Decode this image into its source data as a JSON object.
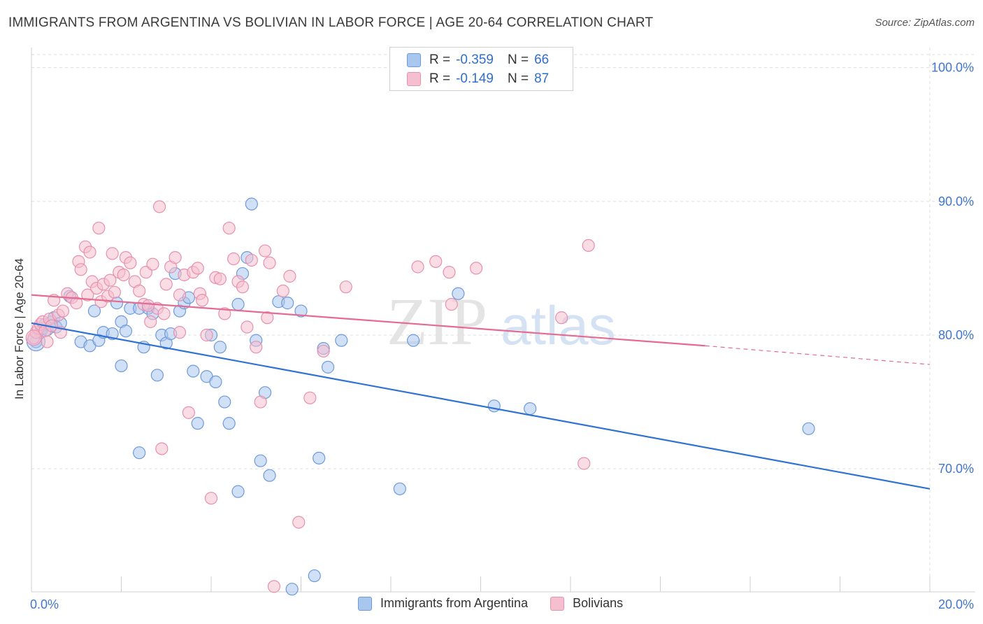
{
  "header": {
    "title": "IMMIGRANTS FROM ARGENTINA VS BOLIVIAN IN LABOR FORCE | AGE 20-64 CORRELATION CHART",
    "source": "Source: ZipAtlas.com"
  },
  "legend_top": {
    "rows": [
      {
        "r_label": "R =",
        "r_value": "-0.359",
        "n_label": "N =",
        "n_value": "66"
      },
      {
        "r_label": "R =",
        "r_value": "-0.149",
        "n_label": "N =",
        "n_value": "87"
      }
    ]
  },
  "legend_bottom": {
    "items": [
      "Immigrants from Argentina",
      "Bolivians"
    ]
  },
  "watermark": {
    "zip": "ZIP",
    "atlas": "atlas"
  },
  "colors": {
    "argentina_fill": "#a9c6ef",
    "argentina_stroke": "#6f9ad9",
    "argentina_line": "#2f72d3",
    "bolivian_fill": "#f6bfd0",
    "bolivian_stroke": "#e890ad",
    "bolivian_line": "#e46b92",
    "grid": "#dddddd",
    "tick_label": "#3f76d0"
  },
  "chart_data": {
    "type": "scatter",
    "title": "IMMIGRANTS FROM ARGENTINA VS BOLIVIAN IN LABOR FORCE | AGE 20-64 CORRELATION CHART",
    "xlabel": "",
    "ylabel": "In Labor Force | Age 20-64",
    "xlim": [
      0,
      20
    ],
    "ylim": [
      60.8,
      101.5
    ],
    "x_tick_labels": [
      "0.0%",
      "20.0%"
    ],
    "y_ticks": [
      70,
      80,
      90,
      100
    ],
    "y_tick_labels": [
      "70.0%",
      "80.0%",
      "90.0%",
      "100.0%"
    ],
    "grid": true,
    "legend_placement": "bottom",
    "series": [
      {
        "name": "Immigrants from Argentina",
        "R": -0.359,
        "N": 66,
        "trend": {
          "x": [
            0,
            20
          ],
          "y": [
            80.9,
            68.5
          ]
        },
        "points": [
          [
            0.1,
            79.5
          ],
          [
            0.2,
            80.2
          ],
          [
            0.25,
            80.5
          ],
          [
            0.3,
            80.8
          ],
          [
            0.35,
            80.4
          ],
          [
            0.45,
            81.0
          ],
          [
            0.5,
            81.3
          ],
          [
            0.55,
            80.6
          ],
          [
            0.65,
            80.9
          ],
          [
            0.85,
            82.9
          ],
          [
            1.1,
            79.5
          ],
          [
            1.3,
            79.2
          ],
          [
            1.4,
            81.8
          ],
          [
            1.5,
            79.6
          ],
          [
            1.6,
            80.2
          ],
          [
            1.8,
            80.1
          ],
          [
            1.9,
            82.4
          ],
          [
            2.0,
            81.0
          ],
          [
            2.0,
            77.7
          ],
          [
            2.1,
            80.3
          ],
          [
            2.2,
            82.0
          ],
          [
            2.4,
            82.0
          ],
          [
            2.5,
            79.1
          ],
          [
            2.6,
            82.0
          ],
          [
            2.7,
            81.6
          ],
          [
            2.8,
            77.0
          ],
          [
            2.9,
            80.0
          ],
          [
            3.0,
            79.4
          ],
          [
            3.1,
            80.1
          ],
          [
            3.2,
            84.6
          ],
          [
            3.3,
            81.8
          ],
          [
            3.4,
            82.4
          ],
          [
            3.5,
            82.8
          ],
          [
            3.6,
            77.3
          ],
          [
            3.7,
            73.4
          ],
          [
            3.9,
            76.9
          ],
          [
            4.0,
            80.0
          ],
          [
            4.1,
            76.5
          ],
          [
            4.2,
            79.1
          ],
          [
            4.3,
            75.0
          ],
          [
            4.4,
            73.4
          ],
          [
            4.6,
            82.3
          ],
          [
            4.7,
            84.6
          ],
          [
            4.8,
            85.8
          ],
          [
            4.9,
            89.8
          ],
          [
            5.0,
            79.6
          ],
          [
            5.1,
            70.6
          ],
          [
            5.2,
            75.7
          ],
          [
            5.3,
            69.5
          ],
          [
            5.5,
            82.5
          ],
          [
            5.7,
            82.4
          ],
          [
            5.8,
            61.0
          ],
          [
            6.0,
            81.8
          ],
          [
            6.3,
            62.0
          ],
          [
            6.4,
            70.8
          ],
          [
            6.5,
            79.0
          ],
          [
            6.6,
            77.6
          ],
          [
            6.9,
            79.6
          ],
          [
            8.2,
            68.5
          ],
          [
            8.5,
            79.6
          ],
          [
            9.5,
            83.1
          ],
          [
            10.3,
            74.7
          ],
          [
            11.1,
            74.5
          ],
          [
            17.3,
            73.0
          ],
          [
            4.6,
            68.3
          ],
          [
            2.4,
            71.2
          ]
        ]
      },
      {
        "name": "Bolivians",
        "R": -0.149,
        "N": 87,
        "trend": {
          "x": [
            0,
            15
          ],
          "y": [
            83.0,
            79.2
          ]
        },
        "trend_dashed": {
          "x": [
            15,
            20
          ],
          "y": [
            79.2,
            77.8
          ]
        },
        "points": [
          [
            0.05,
            79.8
          ],
          [
            0.1,
            80.2
          ],
          [
            0.15,
            80.5
          ],
          [
            0.2,
            80.8
          ],
          [
            0.25,
            81.0
          ],
          [
            0.3,
            80.3
          ],
          [
            0.4,
            81.2
          ],
          [
            0.45,
            80.7
          ],
          [
            0.5,
            82.6
          ],
          [
            0.6,
            81.5
          ],
          [
            0.65,
            80.2
          ],
          [
            0.7,
            81.8
          ],
          [
            0.8,
            83.1
          ],
          [
            0.9,
            82.8
          ],
          [
            1.0,
            82.4
          ],
          [
            1.05,
            85.5
          ],
          [
            1.1,
            84.9
          ],
          [
            1.2,
            86.6
          ],
          [
            1.3,
            86.2
          ],
          [
            1.35,
            84.0
          ],
          [
            1.45,
            83.5
          ],
          [
            1.5,
            88.0
          ],
          [
            1.55,
            82.5
          ],
          [
            1.6,
            83.8
          ],
          [
            1.7,
            82.9
          ],
          [
            1.75,
            84.1
          ],
          [
            1.8,
            86.1
          ],
          [
            1.85,
            83.2
          ],
          [
            1.95,
            84.7
          ],
          [
            2.05,
            84.5
          ],
          [
            2.1,
            85.8
          ],
          [
            2.2,
            85.4
          ],
          [
            2.3,
            84.0
          ],
          [
            2.4,
            83.3
          ],
          [
            2.5,
            82.3
          ],
          [
            2.55,
            84.7
          ],
          [
            2.65,
            81.0
          ],
          [
            2.7,
            85.3
          ],
          [
            2.8,
            82.0
          ],
          [
            2.85,
            89.6
          ],
          [
            2.95,
            81.6
          ],
          [
            3.0,
            83.8
          ],
          [
            3.1,
            85.1
          ],
          [
            3.2,
            85.8
          ],
          [
            3.3,
            80.2
          ],
          [
            3.4,
            84.5
          ],
          [
            3.5,
            74.2
          ],
          [
            3.6,
            84.7
          ],
          [
            3.7,
            85.0
          ],
          [
            3.75,
            83.1
          ],
          [
            3.8,
            82.6
          ],
          [
            3.9,
            80.0
          ],
          [
            4.0,
            67.8
          ],
          [
            4.1,
            84.3
          ],
          [
            4.2,
            84.2
          ],
          [
            4.3,
            81.6
          ],
          [
            4.4,
            88.0
          ],
          [
            4.5,
            85.7
          ],
          [
            4.6,
            84.0
          ],
          [
            4.7,
            83.6
          ],
          [
            4.8,
            80.6
          ],
          [
            4.9,
            85.6
          ],
          [
            5.0,
            79.1
          ],
          [
            5.1,
            75.0
          ],
          [
            5.2,
            86.3
          ],
          [
            5.25,
            81.3
          ],
          [
            5.3,
            85.4
          ],
          [
            5.4,
            61.2
          ],
          [
            5.6,
            83.3
          ],
          [
            5.75,
            84.4
          ],
          [
            5.95,
            66.0
          ],
          [
            6.2,
            75.3
          ],
          [
            6.5,
            78.8
          ],
          [
            7.0,
            83.6
          ],
          [
            8.6,
            85.1
          ],
          [
            9.0,
            85.5
          ],
          [
            9.3,
            84.7
          ],
          [
            9.35,
            82.3
          ],
          [
            9.9,
            85.0
          ],
          [
            11.8,
            81.3
          ],
          [
            12.4,
            86.7
          ],
          [
            12.3,
            70.4
          ],
          [
            2.9,
            71.5
          ],
          [
            3.3,
            83.0
          ],
          [
            1.25,
            83.0
          ],
          [
            0.35,
            79.5
          ],
          [
            2.6,
            82.2
          ]
        ]
      }
    ]
  }
}
